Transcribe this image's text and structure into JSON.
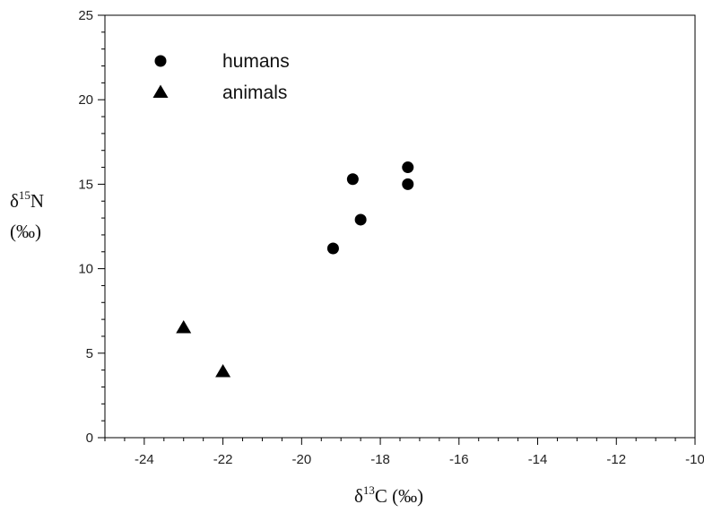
{
  "chart_data": {
    "type": "scatter",
    "title": "",
    "xlabel": {
      "prefix": "δ",
      "sup": "13",
      "rest": "C (‰)"
    },
    "ylabel": {
      "prefix": "δ",
      "sup": "15",
      "rest": "N",
      "unit": "(‰)"
    },
    "xlim": [
      -25,
      -10
    ],
    "ylim": [
      0,
      25
    ],
    "xticks": [
      -24,
      -22,
      -20,
      -18,
      -16,
      -14,
      -12,
      -10
    ],
    "yticks": [
      0,
      5,
      10,
      15,
      20,
      25
    ],
    "grid": false,
    "legend_position": "top-left",
    "series": [
      {
        "name": "humans",
        "marker": "circle",
        "color": "#000000",
        "points": [
          {
            "x": -19.2,
            "y": 11.2
          },
          {
            "x": -18.7,
            "y": 15.3
          },
          {
            "x": -18.5,
            "y": 12.9
          },
          {
            "x": -17.3,
            "y": 16.0
          },
          {
            "x": -17.3,
            "y": 15.0
          }
        ]
      },
      {
        "name": "animals",
        "marker": "triangle",
        "color": "#000000",
        "points": [
          {
            "x": -23.0,
            "y": 6.5
          },
          {
            "x": -22.0,
            "y": 3.9
          }
        ]
      }
    ]
  }
}
